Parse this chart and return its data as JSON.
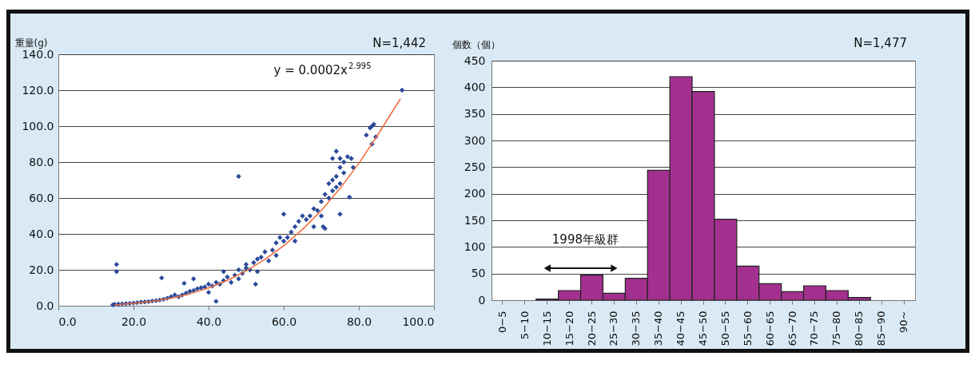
{
  "chart_data": [
    {
      "type": "scatter",
      "ylabel": "重量(g)",
      "xlim": [
        0,
        100
      ],
      "ylim": [
        0,
        140
      ],
      "xticks": [
        {
          "value": 0,
          "label": "0.0"
        },
        {
          "value": 20,
          "label": "20.0"
        },
        {
          "value": 40,
          "label": "40.0"
        },
        {
          "value": 60,
          "label": "60.0"
        },
        {
          "value": 80,
          "label": "80.0"
        },
        {
          "value": 100,
          "label": "100.0"
        }
      ],
      "yticks": [
        {
          "value": 0,
          "label": "0.0"
        },
        {
          "value": 20,
          "label": "20.0"
        },
        {
          "value": 40,
          "label": "40.0"
        },
        {
          "value": 60,
          "label": "60.0"
        },
        {
          "value": 80,
          "label": "80.0"
        },
        {
          "value": 100,
          "label": "100.0"
        },
        {
          "value": 120,
          "label": "120.0"
        },
        {
          "value": 140,
          "label": "140.0"
        }
      ],
      "grid": "y",
      "annotations": [
        "N=1,442",
        "y = 0.0002x$^{2.995}$"
      ],
      "series": [
        {
          "type": "scatter",
          "marker": "diamond",
          "color": "#2b4a9b",
          "x": [
            14.5,
            15,
            15.5,
            15.5,
            16,
            17,
            18,
            19,
            20,
            21,
            22,
            23,
            24,
            25,
            26,
            27,
            27.5,
            28,
            29,
            30,
            31,
            32,
            33,
            33.5,
            34,
            35,
            36,
            36,
            37,
            38,
            39,
            40,
            40,
            41,
            42,
            42,
            43,
            44,
            44,
            45,
            46,
            47,
            48,
            48,
            48,
            49,
            50,
            50,
            51,
            52,
            52.5,
            53,
            53,
            54,
            55,
            56,
            57,
            58,
            58,
            59,
            60,
            60,
            61,
            62,
            63,
            63,
            64,
            65,
            66,
            67,
            68,
            68,
            69,
            70,
            70,
            70.5,
            71,
            71,
            72,
            72,
            73,
            73,
            73,
            74,
            74,
            74,
            75,
            75,
            75,
            75,
            76,
            76,
            77,
            77.5,
            78,
            78.5,
            82,
            83,
            83.5,
            83.5,
            84,
            84.5,
            91.5
          ],
          "values": [
            0.5,
            0.8,
            23,
            19,
            0.9,
            1,
            1.2,
            1.3,
            1.5,
            1.7,
            2,
            2.1,
            2.3,
            2.6,
            2.8,
            3.2,
            15.5,
            3.6,
            4.2,
            5,
            6,
            5,
            6,
            12.5,
            7,
            8,
            8.5,
            15,
            9.5,
            10,
            10.5,
            7.5,
            12,
            11,
            13,
            2.5,
            12,
            14,
            19,
            16,
            13,
            17,
            15,
            20,
            72,
            18,
            21,
            23,
            20,
            24,
            12,
            19,
            26,
            27,
            30,
            25,
            31,
            35,
            28,
            38,
            36,
            51,
            38,
            41,
            44,
            36,
            47,
            50,
            48,
            50,
            54,
            44,
            53,
            58,
            50,
            44,
            62,
            43,
            68,
            60,
            70,
            64,
            82,
            72,
            66,
            86,
            77,
            68,
            51,
            82,
            80,
            74,
            83,
            60.5,
            82,
            77,
            95,
            99,
            100,
            90,
            101,
            94,
            120
          ]
        },
        {
          "type": "line",
          "color": "#f26a3a",
          "x": [
            15,
            20,
            25,
            30,
            35,
            40,
            45,
            50,
            55,
            60,
            65,
            70,
            75,
            80,
            85,
            91
          ],
          "values": [
            0.5,
            1.3,
            2.4,
            4.2,
            6.6,
            9.9,
            14.1,
            19.4,
            25.8,
            33.4,
            42.5,
            53,
            65.3,
            79.3,
            95,
            115
          ]
        }
      ]
    },
    {
      "type": "bar",
      "ylabel": "個数（個）",
      "color": "#a3308f",
      "ylim": [
        0,
        450
      ],
      "yticks": [
        0,
        50,
        100,
        150,
        200,
        250,
        300,
        350,
        400,
        450
      ],
      "grid": "y",
      "annotations": [
        "N=1,477",
        "1998年級群"
      ],
      "categories": [
        "0−5",
        "5−10",
        "10−15",
        "15−20",
        "20−25",
        "25−30",
        "30−35",
        "35−40",
        "40−45",
        "45−50",
        "50−55",
        "55−60",
        "60−65",
        "65−70",
        "70−75",
        "75−80",
        "80−85",
        "85−90",
        "90~"
      ],
      "values": [
        0,
        0,
        2,
        18,
        47,
        13,
        41,
        244,
        420,
        392,
        152,
        64,
        31,
        16,
        27,
        18,
        5,
        0,
        0
      ]
    }
  ]
}
